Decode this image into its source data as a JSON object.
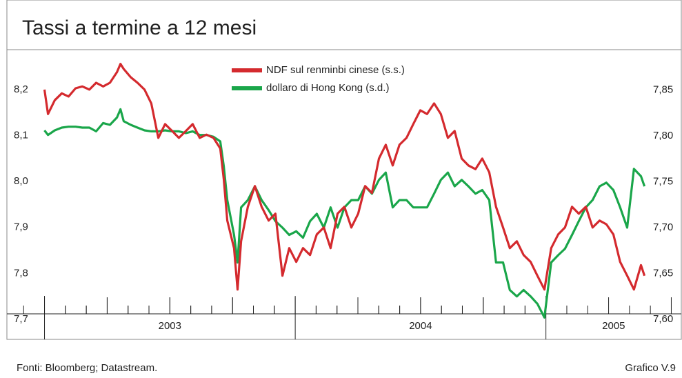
{
  "chart_data": {
    "type": "line",
    "title": "Tassi a termine a 12 mesi",
    "source": "Fonti: Bloomberg; Datastream.",
    "chart_id": "Grafico V.9",
    "x": [
      2003.0,
      2003.014,
      2003.041,
      2003.069,
      2003.096,
      2003.124,
      2003.151,
      2003.179,
      2003.206,
      2003.234,
      2003.261,
      2003.289,
      2003.303,
      2003.316,
      2003.344,
      2003.371,
      2003.399,
      2003.426,
      2003.454,
      2003.481,
      2003.509,
      2003.536,
      2003.564,
      2003.591,
      2003.619,
      2003.646,
      2003.674,
      2003.701,
      2003.715,
      2003.729,
      2003.756,
      2003.77,
      2003.784,
      2003.811,
      2003.839,
      2003.866,
      2003.894,
      2003.921,
      2003.949,
      2003.976,
      2004.004,
      2004.031,
      2004.059,
      2004.086,
      2004.114,
      2004.141,
      2004.169,
      2004.196,
      2004.224,
      2004.251,
      2004.279,
      2004.306,
      2004.334,
      2004.361,
      2004.389,
      2004.416,
      2004.444,
      2004.471,
      2004.499,
      2004.526,
      2004.554,
      2004.581,
      2004.609,
      2004.636,
      2004.664,
      2004.691,
      2004.719,
      2004.746,
      2004.774,
      2004.801,
      2004.829,
      2004.856,
      2004.884,
      2004.911,
      2004.939,
      2004.966,
      2004.994,
      2005.021,
      2005.049,
      2005.076,
      2005.104,
      2005.131,
      2005.159,
      2005.186,
      2005.214,
      2005.241,
      2005.269,
      2005.296,
      2005.324,
      2005.351,
      2005.379,
      2005.393
    ],
    "series": [
      {
        "name": "NDF sul renminbi cinese (s.s.)",
        "color": "#d42a2e",
        "axis": "y",
        "values": [
          8.2,
          8.147,
          8.177,
          8.192,
          8.185,
          8.203,
          8.207,
          8.2,
          8.215,
          8.207,
          8.215,
          8.238,
          8.256,
          8.245,
          8.227,
          8.215,
          8.2,
          8.17,
          8.095,
          8.125,
          8.11,
          8.095,
          8.11,
          8.125,
          8.095,
          8.102,
          8.095,
          8.072,
          8.005,
          7.915,
          7.855,
          7.765,
          7.87,
          7.945,
          7.99,
          7.945,
          7.915,
          7.93,
          7.795,
          7.855,
          7.825,
          7.855,
          7.84,
          7.885,
          7.9,
          7.855,
          7.93,
          7.945,
          7.9,
          7.93,
          7.99,
          7.975,
          8.05,
          8.08,
          8.035,
          8.08,
          8.095,
          8.125,
          8.155,
          8.147,
          8.17,
          8.147,
          8.095,
          8.11,
          8.05,
          8.035,
          8.027,
          8.05,
          8.02,
          7.945,
          7.9,
          7.855,
          7.87,
          7.84,
          7.825,
          7.795,
          7.765,
          7.855,
          7.885,
          7.9,
          7.945,
          7.93,
          7.945,
          7.9,
          7.915,
          7.907,
          7.885,
          7.825,
          7.795,
          7.765,
          7.818,
          7.795
        ]
      },
      {
        "name": "dollaro di Hong Kong (s.d.)",
        "color": "#1aa64a",
        "axis": "y2",
        "values": [
          7.806,
          7.801,
          7.806,
          7.809,
          7.81,
          7.81,
          7.809,
          7.809,
          7.805,
          7.814,
          7.812,
          7.82,
          7.829,
          7.816,
          7.812,
          7.809,
          7.806,
          7.805,
          7.805,
          7.806,
          7.805,
          7.805,
          7.803,
          7.805,
          7.801,
          7.801,
          7.799,
          7.794,
          7.767,
          7.73,
          7.692,
          7.662,
          7.722,
          7.73,
          7.745,
          7.73,
          7.719,
          7.707,
          7.7,
          7.692,
          7.696,
          7.689,
          7.707,
          7.715,
          7.7,
          7.722,
          7.7,
          7.722,
          7.73,
          7.73,
          7.745,
          7.737,
          7.752,
          7.76,
          7.722,
          7.73,
          7.73,
          7.722,
          7.722,
          7.722,
          7.737,
          7.752,
          7.76,
          7.745,
          7.752,
          7.745,
          7.737,
          7.741,
          7.73,
          7.662,
          7.662,
          7.632,
          7.625,
          7.632,
          7.625,
          7.617,
          7.602,
          7.662,
          7.67,
          7.677,
          7.692,
          7.707,
          7.722,
          7.73,
          7.745,
          7.749,
          7.741,
          7.722,
          7.7,
          7.764,
          7.756,
          7.745
        ]
      }
    ],
    "xlim": [
      2002.85,
      2005.54
    ],
    "xticks": [
      2003,
      2004,
      2005
    ],
    "ylim": [
      7.712,
      8.287
    ],
    "yticks": [
      {
        "value": 7.7,
        "label": "7,7"
      },
      {
        "value": 7.8,
        "label": "7,8"
      },
      {
        "value": 7.9,
        "label": "7,9"
      },
      {
        "value": 8.0,
        "label": "8,0"
      },
      {
        "value": 8.1,
        "label": "8,1"
      },
      {
        "value": 8.2,
        "label": "8,2"
      }
    ],
    "y2lim": [
      7.606,
      7.894
    ],
    "y2ticks": [
      {
        "value": 7.6,
        "label": "7,60"
      },
      {
        "value": 7.65,
        "label": "7,65"
      },
      {
        "value": 7.7,
        "label": "7,70"
      },
      {
        "value": 7.75,
        "label": "7,75"
      },
      {
        "value": 7.8,
        "label": "7,80"
      },
      {
        "value": 7.85,
        "label": "7,85"
      }
    ],
    "legend": "top"
  }
}
